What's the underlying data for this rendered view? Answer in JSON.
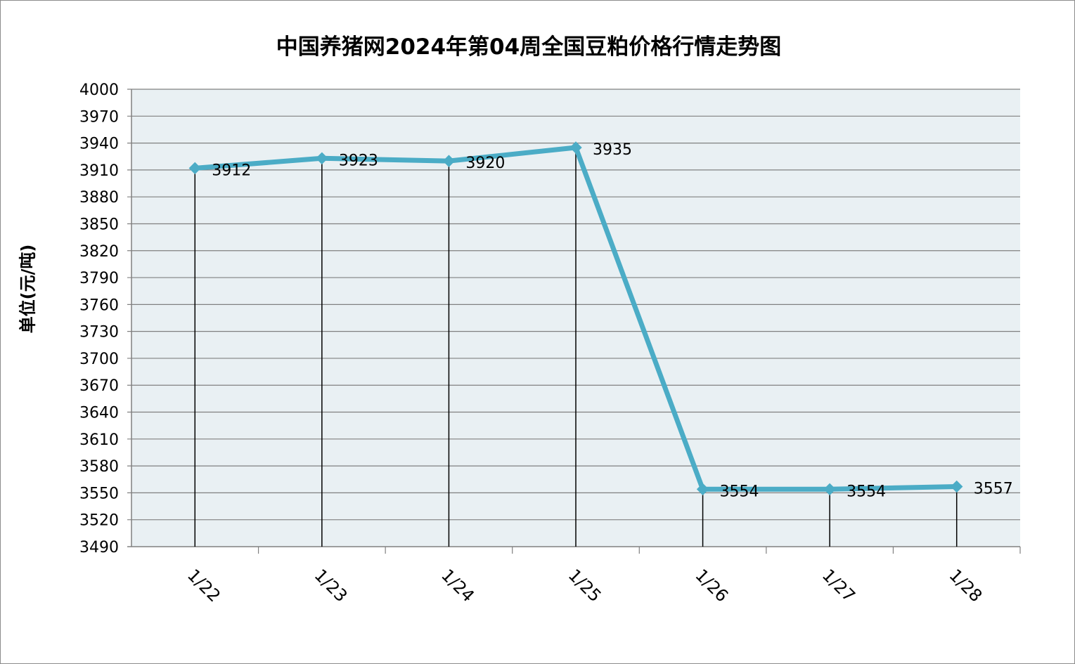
{
  "chart_data": {
    "type": "line",
    "title": "中国养猪网2024年第04周全国豆粕价格行情走势图",
    "ylabel": "单位(元/吨)",
    "xlabel": "",
    "categories": [
      "1/22",
      "1/23",
      "1/24",
      "1/25",
      "1/26",
      "1/27",
      "1/28"
    ],
    "values": [
      3912,
      3923,
      3920,
      3935,
      3554,
      3554,
      3557
    ],
    "data_labels": [
      "3912",
      "3923",
      "3920",
      "3935",
      "3554",
      "3554",
      "3557"
    ],
    "ylim": [
      3490,
      4000
    ],
    "y_ticks": [
      "4000",
      "3970",
      "3940",
      "3910",
      "3880",
      "3850",
      "3820",
      "3790",
      "3760",
      "3730",
      "3700",
      "3670",
      "3640",
      "3610",
      "3580",
      "3550",
      "3520",
      "3490"
    ],
    "grid": true,
    "drop_lines": true,
    "legend": "none",
    "colors": {
      "line": "#4bacc6",
      "plot_background": "#e9f0f3",
      "gridline": "#808080",
      "drop_line": "#000000"
    }
  }
}
